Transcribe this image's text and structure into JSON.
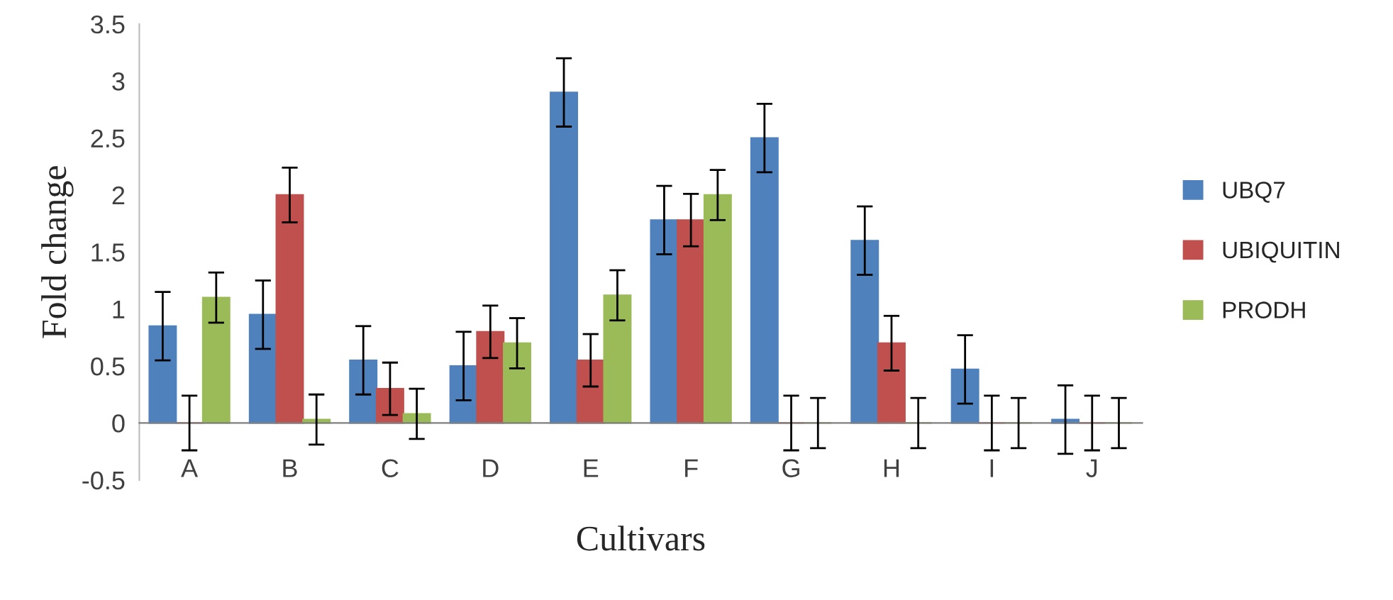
{
  "chart_data": {
    "type": "bar",
    "xlabel": "Cultivars",
    "ylabel": "Fold change",
    "categories": [
      "A",
      "B",
      "C",
      "D",
      "E",
      "F",
      "G",
      "H",
      "I",
      "J"
    ],
    "series": [
      {
        "name": "UBQ7",
        "color": "#4f81bd",
        "values": [
          0.85,
          0.95,
          0.55,
          0.5,
          2.9,
          1.78,
          2.5,
          1.6,
          0.47,
          0.03
        ],
        "errors": [
          0.3,
          0.3,
          0.3,
          0.3,
          0.3,
          0.3,
          0.3,
          0.3,
          0.3,
          0.3
        ]
      },
      {
        "name": "UBIQUITIN",
        "color": "#c0504d",
        "values": [
          0,
          2.0,
          0.3,
          0.8,
          0.55,
          1.78,
          0,
          0.7,
          0,
          0
        ],
        "errors": [
          0.24,
          0.24,
          0.23,
          0.23,
          0.23,
          0.23,
          0.24,
          0.24,
          0.24,
          0.24
        ]
      },
      {
        "name": "PRODH",
        "color": "#9bbb59",
        "values": [
          1.1,
          0.03,
          0.08,
          0.7,
          1.12,
          2.0,
          0,
          0,
          0,
          0
        ],
        "errors": [
          0.22,
          0.22,
          0.22,
          0.22,
          0.22,
          0.22,
          0.22,
          0.22,
          0.22,
          0.22
        ]
      }
    ],
    "ylim": [
      -0.5,
      3.5
    ],
    "yticks": [
      -0.5,
      0,
      0.5,
      1,
      1.5,
      2,
      2.5,
      3,
      3.5
    ],
    "grid": false,
    "legend": "right"
  }
}
